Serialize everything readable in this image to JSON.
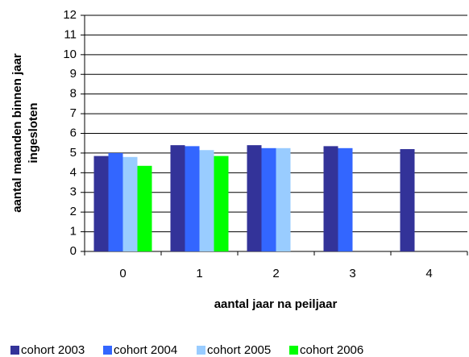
{
  "chart_data": {
    "type": "bar",
    "y_label": [
      "aantal maanden binnen jaar",
      "ingesloten"
    ],
    "x_label": "aantal jaar na peiljaar",
    "categories": [
      "0",
      "1",
      "2",
      "3",
      "4"
    ],
    "series": [
      {
        "name": "cohort 2003",
        "color": "#333399",
        "values": [
          4.85,
          5.4,
          5.4,
          5.35,
          5.2
        ]
      },
      {
        "name": "cohort 2004",
        "color": "#3366ff",
        "values": [
          5.0,
          5.35,
          5.25,
          5.25,
          null
        ]
      },
      {
        "name": "cohort 2005",
        "color": "#99ccff",
        "values": [
          4.8,
          5.15,
          5.25,
          null,
          null
        ]
      },
      {
        "name": "cohort 2006",
        "color": "#00ff00",
        "values": [
          4.35,
          4.85,
          null,
          null,
          null
        ]
      }
    ],
    "ylim": [
      0,
      12
    ],
    "yticks": [
      0,
      1,
      2,
      3,
      4,
      5,
      6,
      7,
      8,
      9,
      10,
      11,
      12
    ],
    "grid": true,
    "legend": "bottom"
  }
}
